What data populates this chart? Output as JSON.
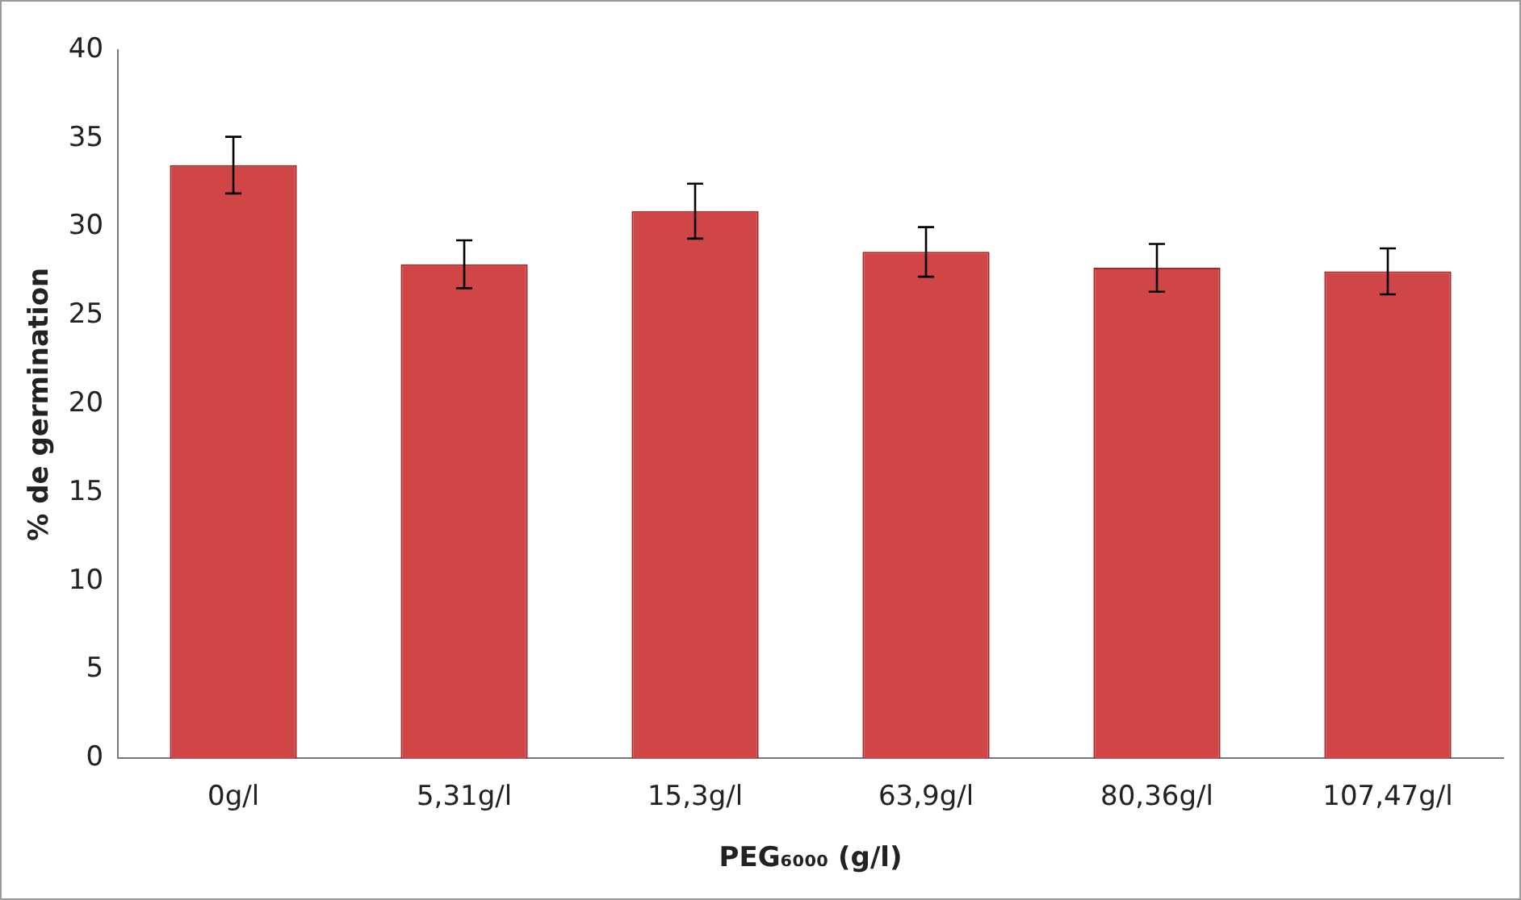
{
  "chart_data": {
    "type": "bar",
    "xlabel": "PEG₆₀₀₀ (g/l)",
    "ylabel": "% de germination",
    "categories": [
      "0g/l",
      "5,31g/l",
      "15,3g/l",
      "63,9g/l",
      "80,36g/l",
      "107,47g/l"
    ],
    "values": [
      33.5,
      27.9,
      30.9,
      28.6,
      27.7,
      27.5
    ],
    "errors": [
      1.6,
      1.35,
      1.55,
      1.4,
      1.35,
      1.3
    ],
    "color": "#d04545",
    "ylim": [
      0,
      40
    ],
    "yticks": [
      0,
      5,
      10,
      15,
      20,
      25,
      30,
      35,
      40
    ],
    "grid": false,
    "legend": false
  }
}
